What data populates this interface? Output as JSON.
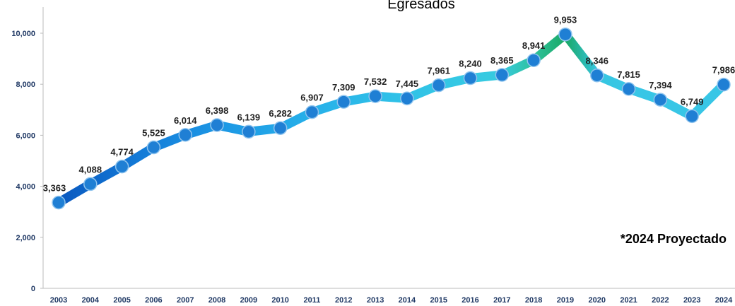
{
  "chart_data": {
    "type": "line",
    "title": "Egresados",
    "categories": [
      "2003",
      "2004",
      "2005",
      "2006",
      "2007",
      "2008",
      "2009",
      "2010",
      "2011",
      "2012",
      "2013",
      "2014",
      "2015",
      "2016",
      "2017",
      "2018",
      "2019",
      "2020",
      "2021",
      "2022",
      "2023",
      "2024"
    ],
    "series": [
      {
        "name": "Egresados",
        "color": "#1f7fd4",
        "point_colors": [
          "#0a58bf",
          "#0d66c9",
          "#1173d2",
          "#1580da",
          "#198ce0",
          "#1c96e4",
          "#1f9fe6",
          "#23a8e8",
          "#27b0e9",
          "#2ab7e9",
          "#2dbde8",
          "#30c2e7",
          "#33c6e5",
          "#35c9e3",
          "#37cadf",
          "#2ec29c",
          "#1aa866",
          "#35c6e0",
          "#38c6e6",
          "#38c6e6",
          "#38c6e6",
          "#38c6e6"
        ],
        "values": [
          3363,
          4088,
          4774,
          5525,
          6014,
          6398,
          6139,
          6282,
          6907,
          7309,
          7532,
          7445,
          7961,
          8240,
          8365,
          8941,
          9953,
          8346,
          7815,
          7394,
          6749,
          7986
        ],
        "value_labels": [
          "3,363",
          "4,088",
          "4,774",
          "5,525",
          "6,014",
          "6,398",
          "6,139",
          "6,282",
          "6,907",
          "7,309",
          "7,532",
          "7,445",
          "7,961",
          "8,240",
          "8,365",
          "8,941",
          "9,953",
          "8,346",
          "7,815",
          "7,394",
          "6,749",
          "7,986"
        ]
      }
    ],
    "ylim": [
      0,
      10000
    ],
    "yticks": [
      0,
      {
        "value": 2000,
        "label": "2,000"
      },
      {
        "value": 4000,
        "label": "4,000"
      },
      {
        "value": 6000,
        "label": "6,000"
      },
      {
        "value": 8000,
        "label": "8,000"
      },
      {
        "value": 10000,
        "label": "10,000"
      }
    ],
    "annotations": [
      "*2024 Proyectado"
    ]
  }
}
